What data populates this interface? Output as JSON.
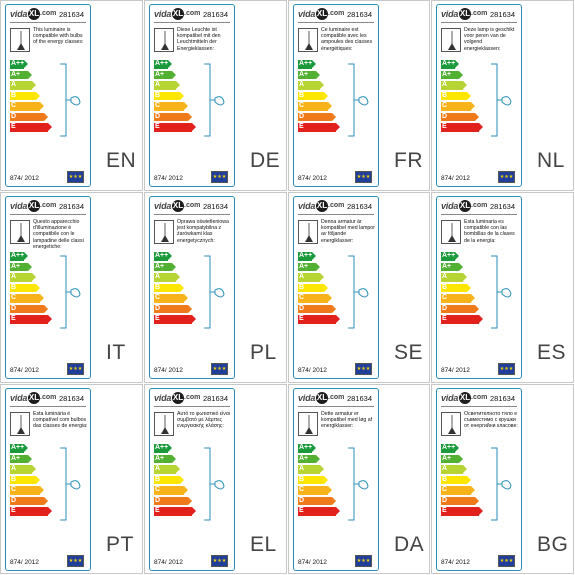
{
  "label": {
    "logo_left": "vida",
    "logo_mark": "XL",
    "logo_right": ".com",
    "code": "281634",
    "regulation": "874/ 2012",
    "classes": [
      "A++",
      "A+",
      "A",
      "B",
      "C",
      "D",
      "E"
    ],
    "class_colors": [
      "#1a9a3a",
      "#52b033",
      "#b6d433",
      "#ffe600",
      "#f8b21a",
      "#ef7a1a",
      "#e2211c"
    ],
    "eu_flag_stars": "★★★"
  },
  "panels": [
    {
      "lang": "EN",
      "text": "This luminaire is compatible with bulbs of the energy classes:"
    },
    {
      "lang": "DE",
      "text": "Diese Leuchte ist kompatibel mit den Leuchtmitteln der Energieklassen:"
    },
    {
      "lang": "FR",
      "text": "Ce luminaire est compatible avec les ampoules des classes énergétiques:"
    },
    {
      "lang": "NL",
      "text": "Deze lamp is geschikt voor peren van de volgend energieklassen:"
    },
    {
      "lang": "IT",
      "text": "Questo apparecchio d'illuminazione è compatibile con le lampadine delle classi energetiche:"
    },
    {
      "lang": "PL",
      "text": "Oprawa oświetleniowa jest kompatybilna z żarówkami klas energetycznych:"
    },
    {
      "lang": "SE",
      "text": "Denna armatur är kompatibel med lampor av följande energiklasser:"
    },
    {
      "lang": "ES",
      "text": "Esta luminaria es compatible con las bombillas de la clases de la energía:"
    },
    {
      "lang": "PT",
      "text": "Esta luminária é compatível com bulbos das classes de energia:"
    },
    {
      "lang": "EL",
      "text": "Αυτό το φωτιστικό είναι συμβατό με λάμπες ενεργειακής κλάσης:"
    },
    {
      "lang": "DA",
      "text": "Dette armatur er kompatibel med løg af energiklasser:"
    },
    {
      "lang": "BG",
      "text": "Осветителното тяло е съвместимо с крушки от енергийни класове:"
    }
  ]
}
